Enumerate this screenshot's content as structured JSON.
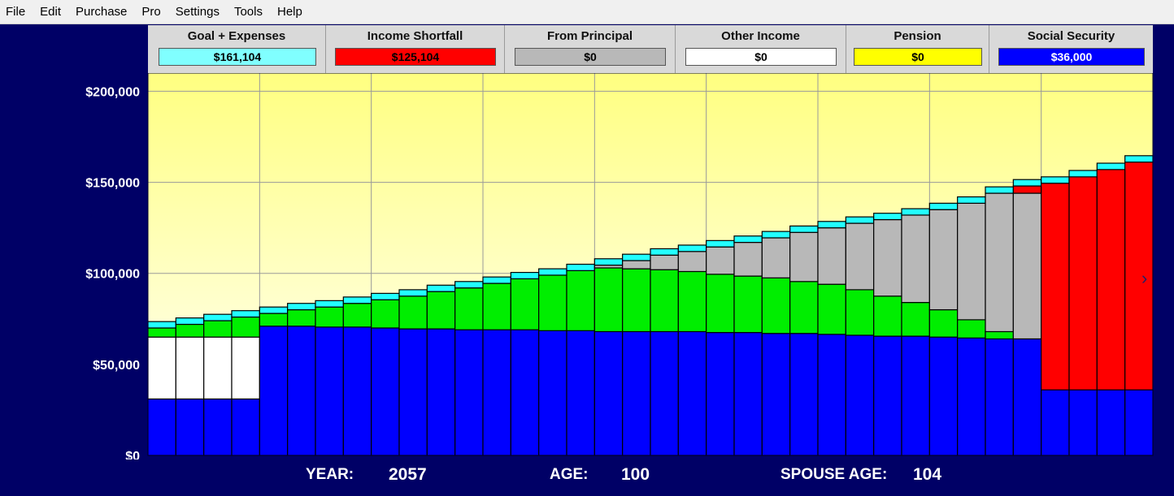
{
  "menu": [
    "File",
    "Edit",
    "Purchase",
    "Pro",
    "Settings",
    "Tools",
    "Help"
  ],
  "legend": [
    {
      "title": "Goal + Expenses",
      "value": "$161,104",
      "color": "#80ffff",
      "text_color": "#000000"
    },
    {
      "title": "Income Shortfall",
      "value": "$125,104",
      "color": "#ff0000",
      "text_color": "#000000"
    },
    {
      "title": "From Principal",
      "value": "$0",
      "color": "#b8b8b8",
      "text_color": "#000000"
    },
    {
      "title": "Other Income",
      "value": "$0",
      "color": "#ffffff",
      "text_color": "#000000"
    },
    {
      "title": "Pension",
      "value": "$0",
      "color": "#ffff00",
      "text_color": "#000000"
    },
    {
      "title": "Social Security",
      "value": "$36,000",
      "color": "#0000ff",
      "text_color": "#ffffff"
    }
  ],
  "footer": {
    "year_label": "YEAR:",
    "year": "2057",
    "age_label": "AGE:",
    "age": "100",
    "spouse_label": "SPOUSE AGE:",
    "spouse_age": "104"
  },
  "chart_data": {
    "type": "bar",
    "stacked": true,
    "ylim": [
      0,
      200000
    ],
    "y_ticks": [
      0,
      50000,
      100000,
      150000,
      200000
    ],
    "y_tick_labels": [
      "$0",
      "$50,000",
      "$100,000",
      "$150,000",
      "$200,000"
    ],
    "grid": true,
    "series_order": [
      "Social Security",
      "Other Income",
      "Pension Gap",
      "From Principal",
      "Income Shortfall",
      "Expenses Top"
    ],
    "series_colors": {
      "Social Security": "#0000ff",
      "Other Income": "#ffffff",
      "Pension Gap": "#00ee00",
      "From Principal": "#b8b8b8",
      "Income Shortfall": "#ff0000",
      "Expenses Top": "#22ffff"
    },
    "bars": [
      {
        "ss": 31000,
        "other": 34000,
        "green": 5000,
        "principal": 0,
        "shortfall": 0,
        "top": 3500
      },
      {
        "ss": 31000,
        "other": 34000,
        "green": 7000,
        "principal": 0,
        "shortfall": 0,
        "top": 3500
      },
      {
        "ss": 31000,
        "other": 34000,
        "green": 9000,
        "principal": 0,
        "shortfall": 0,
        "top": 3500
      },
      {
        "ss": 31000,
        "other": 34000,
        "green": 11000,
        "principal": 0,
        "shortfall": 0,
        "top": 3500
      },
      {
        "ss": 71000,
        "other": 0,
        "green": 7000,
        "principal": 0,
        "shortfall": 0,
        "top": 3500
      },
      {
        "ss": 71000,
        "other": 0,
        "green": 9000,
        "principal": 0,
        "shortfall": 0,
        "top": 3500
      },
      {
        "ss": 70500,
        "other": 0,
        "green": 11000,
        "principal": 0,
        "shortfall": 0,
        "top": 3500
      },
      {
        "ss": 70500,
        "other": 0,
        "green": 13000,
        "principal": 0,
        "shortfall": 0,
        "top": 3500
      },
      {
        "ss": 70000,
        "other": 0,
        "green": 15500,
        "principal": 0,
        "shortfall": 0,
        "top": 3500
      },
      {
        "ss": 69500,
        "other": 0,
        "green": 18000,
        "principal": 0,
        "shortfall": 0,
        "top": 3500
      },
      {
        "ss": 69500,
        "other": 0,
        "green": 20500,
        "principal": 0,
        "shortfall": 0,
        "top": 3500
      },
      {
        "ss": 69000,
        "other": 0,
        "green": 23000,
        "principal": 0,
        "shortfall": 0,
        "top": 3500
      },
      {
        "ss": 69000,
        "other": 0,
        "green": 25500,
        "principal": 0,
        "shortfall": 0,
        "top": 3500
      },
      {
        "ss": 69000,
        "other": 0,
        "green": 28000,
        "principal": 0,
        "shortfall": 0,
        "top": 3500
      },
      {
        "ss": 68500,
        "other": 0,
        "green": 30500,
        "principal": 0,
        "shortfall": 0,
        "top": 3500
      },
      {
        "ss": 68500,
        "other": 0,
        "green": 33000,
        "principal": 0,
        "shortfall": 0,
        "top": 3500
      },
      {
        "ss": 68000,
        "other": 0,
        "green": 35000,
        "principal": 1500,
        "shortfall": 0,
        "top": 3500
      },
      {
        "ss": 68000,
        "other": 0,
        "green": 34500,
        "principal": 4500,
        "shortfall": 0,
        "top": 3500
      },
      {
        "ss": 68000,
        "other": 0,
        "green": 34000,
        "principal": 8000,
        "shortfall": 0,
        "top": 3500
      },
      {
        "ss": 68000,
        "other": 0,
        "green": 33000,
        "principal": 11000,
        "shortfall": 0,
        "top": 3500
      },
      {
        "ss": 67500,
        "other": 0,
        "green": 32000,
        "principal": 15000,
        "shortfall": 0,
        "top": 3500
      },
      {
        "ss": 67500,
        "other": 0,
        "green": 31000,
        "principal": 18500,
        "shortfall": 0,
        "top": 3500
      },
      {
        "ss": 67000,
        "other": 0,
        "green": 30500,
        "principal": 22000,
        "shortfall": 0,
        "top": 3500
      },
      {
        "ss": 67000,
        "other": 0,
        "green": 28500,
        "principal": 27000,
        "shortfall": 0,
        "top": 3500
      },
      {
        "ss": 66500,
        "other": 0,
        "green": 27500,
        "principal": 31000,
        "shortfall": 0,
        "top": 3500
      },
      {
        "ss": 66000,
        "other": 0,
        "green": 25000,
        "principal": 36500,
        "shortfall": 0,
        "top": 3500
      },
      {
        "ss": 65500,
        "other": 0,
        "green": 22000,
        "principal": 42000,
        "shortfall": 0,
        "top": 3500
      },
      {
        "ss": 65500,
        "other": 0,
        "green": 18500,
        "principal": 48000,
        "shortfall": 0,
        "top": 3500
      },
      {
        "ss": 65000,
        "other": 0,
        "green": 15000,
        "principal": 55000,
        "shortfall": 0,
        "top": 3500
      },
      {
        "ss": 64500,
        "other": 0,
        "green": 10000,
        "principal": 64000,
        "shortfall": 0,
        "top": 3500
      },
      {
        "ss": 64000,
        "other": 0,
        "green": 4000,
        "principal": 76000,
        "shortfall": 0,
        "top": 3500
      },
      {
        "ss": 64000,
        "other": 0,
        "green": 0,
        "principal": 80000,
        "shortfall": 4000,
        "top": 3500
      },
      {
        "ss": 36000,
        "other": 0,
        "green": 0,
        "principal": 0,
        "shortfall": 113500,
        "top": 3500
      },
      {
        "ss": 36000,
        "other": 0,
        "green": 0,
        "principal": 0,
        "shortfall": 117000,
        "top": 3500
      },
      {
        "ss": 36000,
        "other": 0,
        "green": 0,
        "principal": 0,
        "shortfall": 121000,
        "top": 3500
      },
      {
        "ss": 36000,
        "other": 0,
        "green": 0,
        "principal": 0,
        "shortfall": 125104,
        "top": 3500
      }
    ]
  }
}
